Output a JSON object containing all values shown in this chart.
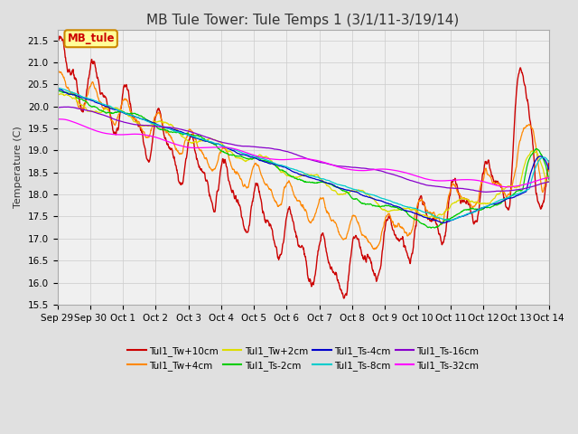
{
  "title": "MB Tule Tower: Tule Temps 1 (3/1/11-3/19/14)",
  "ylabel": "Temperature (C)",
  "ylim": [
    15.5,
    21.75
  ],
  "yticks": [
    15.5,
    16.0,
    16.5,
    17.0,
    17.5,
    18.0,
    18.5,
    19.0,
    19.5,
    20.0,
    20.5,
    21.0,
    21.5
  ],
  "series": [
    {
      "label": "Tul1_Tw+10cm",
      "color": "#cc0000"
    },
    {
      "label": "Tul1_Tw+4cm",
      "color": "#ff8800"
    },
    {
      "label": "Tul1_Tw+2cm",
      "color": "#dddd00"
    },
    {
      "label": "Tul1_Ts-2cm",
      "color": "#00cc00"
    },
    {
      "label": "Tul1_Ts-4cm",
      "color": "#0000cc"
    },
    {
      "label": "Tul1_Ts-8cm",
      "color": "#00cccc"
    },
    {
      "label": "Tul1_Ts-16cm",
      "color": "#8800cc"
    },
    {
      "label": "Tul1_Ts-32cm",
      "color": "#ff00ff"
    }
  ],
  "annotation_label": "MB_tule",
  "bg_color": "#e0e0e0",
  "plot_bg_color": "#f0f0f0",
  "grid_color": "#cccccc",
  "title_fontsize": 11,
  "label_fontsize": 8,
  "tick_fontsize": 7.5,
  "legend_fontsize": 7.5
}
